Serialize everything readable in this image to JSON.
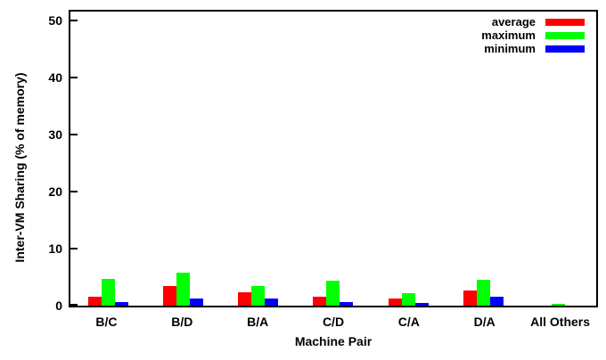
{
  "figure": {
    "background_color": "#ffffff",
    "text_color": "#000000"
  },
  "chart_data": {
    "type": "bar",
    "title": "",
    "categories": [
      "B/C",
      "B/D",
      "B/A",
      "C/D",
      "C/A",
      "D/A",
      "All Others"
    ],
    "series": [
      {
        "name": "average",
        "color": "#ff0000",
        "values": [
          1.6,
          3.4,
          2.4,
          1.5,
          1.3,
          2.6,
          0.0
        ]
      },
      {
        "name": "maximum",
        "color": "#00ff00",
        "values": [
          4.7,
          5.8,
          3.5,
          4.4,
          2.2,
          4.5,
          0.3
        ]
      },
      {
        "name": "minimum",
        "color": "#0000ff",
        "values": [
          0.7,
          1.2,
          1.3,
          0.7,
          0.5,
          1.6,
          0.0
        ]
      }
    ],
    "xlabel": "Machine Pair",
    "ylabel": "Inter-VM Sharing (% of memory)",
    "yticks": [
      0,
      10,
      20,
      30,
      40,
      50
    ],
    "ylim": [
      0,
      50
    ],
    "ylim_render_max": 51.5,
    "legend_position": "top-right-inside",
    "grid": false,
    "bar_style": "grouped"
  }
}
